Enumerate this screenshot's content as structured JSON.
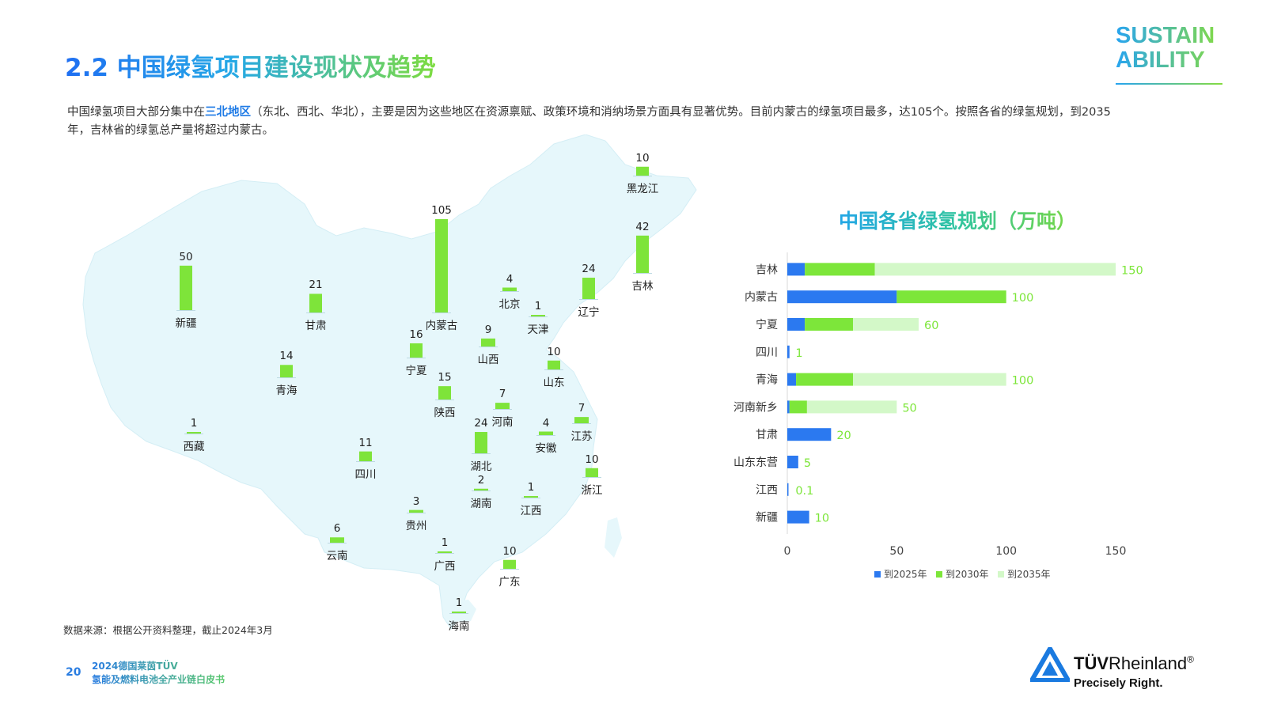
{
  "header": {
    "title": "2.2 中国绿氢项目建设现状及趋势",
    "brand_line1": "SUSTAIN",
    "brand_line2": "ABILITY"
  },
  "intro": {
    "before": "中国绿氢项目大部分集中在",
    "highlight": "三北地区",
    "after": "（东北、西北、华北），主要是因为这些地区在资源禀赋、政策环境和消纳场景方面具有显著优势。目前内蒙古的绿氢项目最多，达105个。按照各省的绿氢规划，到2035年，吉林省的绿氢总产量将超过内蒙古。"
  },
  "colors": {
    "map_fill": "#e6f7fb",
    "map_bar": "#7ee43a",
    "series_2025": "#2b79f0",
    "series_2030": "#7de63a",
    "series_2035": "#d3f8c8",
    "value_label": "#7de63a"
  },
  "map_data": {
    "type": "bar",
    "provinces": [
      {
        "name": "黑龙江",
        "value": 10
      },
      {
        "name": "吉林",
        "value": 42
      },
      {
        "name": "辽宁",
        "value": 24
      },
      {
        "name": "北京",
        "value": 4
      },
      {
        "name": "天津",
        "value": 1
      },
      {
        "name": "内蒙古",
        "value": 105
      },
      {
        "name": "新疆",
        "value": 50
      },
      {
        "name": "甘肃",
        "value": 21
      },
      {
        "name": "青海",
        "value": 14
      },
      {
        "name": "宁夏",
        "value": 16
      },
      {
        "name": "山西",
        "value": 9
      },
      {
        "name": "山东",
        "value": 10
      },
      {
        "name": "陕西",
        "value": 15
      },
      {
        "name": "河南",
        "value": 7
      },
      {
        "name": "江苏",
        "value": 7
      },
      {
        "name": "西藏",
        "value": 1
      },
      {
        "name": "四川",
        "value": 11
      },
      {
        "name": "湖北",
        "value": 24
      },
      {
        "name": "安徽",
        "value": 4
      },
      {
        "name": "浙江",
        "value": 10
      },
      {
        "name": "湖南",
        "value": 2
      },
      {
        "name": "江西",
        "value": 1
      },
      {
        "name": "贵州",
        "value": 3
      },
      {
        "name": "云南",
        "value": 6
      },
      {
        "name": "广西",
        "value": 1
      },
      {
        "name": "广东",
        "value": 10
      },
      {
        "name": "海南",
        "value": 1
      }
    ]
  },
  "chart_data": {
    "type": "bar",
    "orientation": "horizontal",
    "stacked": true,
    "title": "中国各省绿氢规划（万吨）",
    "categories": [
      "吉林",
      "内蒙古",
      "宁夏",
      "四川",
      "青海",
      "河南新乡",
      "甘肃",
      "山东东营",
      "江西",
      "新疆"
    ],
    "series": [
      {
        "name": "到2025年",
        "values": [
          8,
          50,
          8,
          1,
          4,
          1,
          20,
          5,
          0.1,
          10
        ]
      },
      {
        "name": "到2030年",
        "values": [
          32,
          50,
          22,
          0,
          26,
          8,
          0,
          0,
          0,
          0
        ]
      },
      {
        "name": "到2035年",
        "values": [
          110,
          0,
          30,
          0,
          70,
          41,
          0,
          0,
          0,
          0
        ]
      }
    ],
    "value_labels": [
      "150",
      "100",
      "60",
      "1",
      "100",
      "50",
      "20",
      "5",
      "0.1",
      "10"
    ],
    "xlim": [
      0,
      150
    ],
    "xticks": [
      0,
      50,
      100,
      150
    ],
    "legend": "bottom"
  },
  "footer": {
    "source": "数据来源：根据公开资料整理，截止2024年3月",
    "page_number": "20",
    "doc_line1": "2024德国莱茵TÜV",
    "doc_line2": "氢能及燃料电池全产业链白皮书",
    "logo_name_bold": "TÜV",
    "logo_name_rest": "Rheinland",
    "logo_reg": "®",
    "logo_tagline": "Precisely Right."
  }
}
